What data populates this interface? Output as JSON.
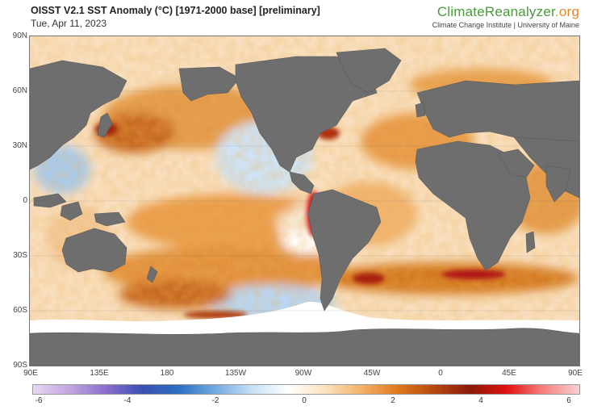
{
  "header": {
    "title": "OISST V2.1 SST Anomaly (°C) [1971-2000 base] [preliminary]",
    "date": "Tue, Apr 11, 2023"
  },
  "brand": {
    "name_main": "ClimateReanalyzer",
    "name_suffix": ".org",
    "affiliation": "Climate Change Institute | University of Maine"
  },
  "map": {
    "lat_labels": [
      "90N",
      "60N",
      "30N",
      "0",
      "30S",
      "60S",
      "90S"
    ],
    "lon_labels": [
      "90E",
      "135E",
      "180",
      "135W",
      "90W",
      "45W",
      "0",
      "45E",
      "90E"
    ],
    "land_color": "#6e6e6e",
    "ice_color": "#ffffff"
  },
  "colorbar": {
    "ticks": [
      "-6",
      "-4",
      "-2",
      "0",
      "2",
      "4",
      "6"
    ],
    "min": -6,
    "max": 6,
    "colors": [
      "#e8d6f2",
      "#c2a6e0",
      "#8a6fcb",
      "#3b4fb3",
      "#2c6fc2",
      "#73a9e0",
      "#c6e0f5",
      "#ffffff",
      "#fbe3c2",
      "#f3b26a",
      "#df7a1e",
      "#b8480f",
      "#8a1a0a",
      "#e01010",
      "#f58080",
      "#f8d0d0"
    ]
  }
}
